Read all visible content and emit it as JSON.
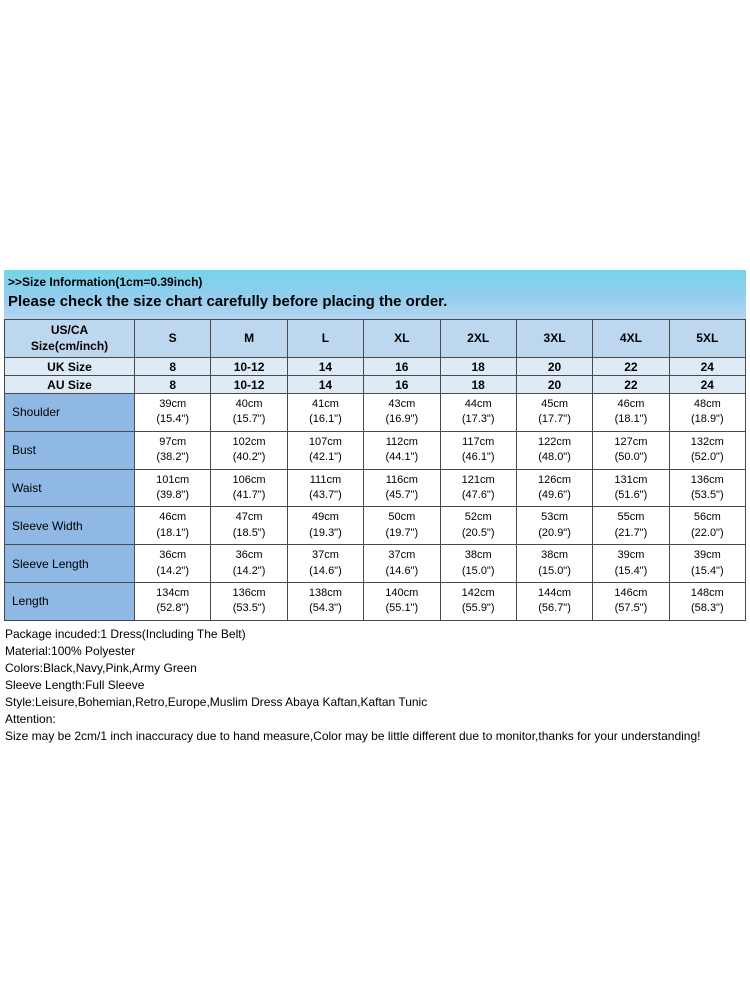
{
  "header": {
    "size_info": ">>Size Information(1cm=0.39inch)",
    "notice": "Please check the size chart carefully before placing the order."
  },
  "table": {
    "corner_line1": "US/CA",
    "corner_line2": "Size(cm/inch)",
    "size_headers": [
      "S",
      "M",
      "L",
      "XL",
      "2XL",
      "3XL",
      "4XL",
      "5XL"
    ],
    "uk": {
      "label": "UK Size",
      "values": [
        "8",
        "10-12",
        "14",
        "16",
        "18",
        "20",
        "22",
        "24"
      ]
    },
    "au": {
      "label": "AU Size",
      "values": [
        "8",
        "10-12",
        "14",
        "16",
        "18",
        "20",
        "22",
        "24"
      ]
    },
    "measure_rows": [
      {
        "label": "Shoulder",
        "cm": [
          "39cm",
          "40cm",
          "41cm",
          "43cm",
          "44cm",
          "45cm",
          "46cm",
          "48cm"
        ],
        "inch": [
          "(15.4\")",
          "(15.7\")",
          "(16.1\")",
          "(16.9\")",
          "(17.3\")",
          "(17.7\")",
          "(18.1\")",
          "(18.9\")"
        ]
      },
      {
        "label": "Bust",
        "cm": [
          "97cm",
          "102cm",
          "107cm",
          "112cm",
          "117cm",
          "122cm",
          "127cm",
          "132cm"
        ],
        "inch": [
          "(38.2\")",
          "(40.2\")",
          "(42.1\")",
          "(44.1\")",
          "(46.1\")",
          "(48.0\")",
          "(50.0\")",
          "(52.0\")"
        ]
      },
      {
        "label": "Waist",
        "cm": [
          "101cm",
          "106cm",
          "111cm",
          "116cm",
          "121cm",
          "126cm",
          "131cm",
          "136cm"
        ],
        "inch": [
          "(39.8\")",
          "(41.7\")",
          "(43.7\")",
          "(45.7\")",
          "(47.6\")",
          "(49.6\")",
          "(51.6\")",
          "(53.5\")"
        ]
      },
      {
        "label": "Sleeve Width",
        "cm": [
          "46cm",
          "47cm",
          "49cm",
          "50cm",
          "52cm",
          "53cm",
          "55cm",
          "56cm"
        ],
        "inch": [
          "(18.1\")",
          "(18.5\")",
          "(19.3\")",
          "(19.7\")",
          "(20.5\")",
          "(20.9\")",
          "(21.7\")",
          "(22.0\")"
        ]
      },
      {
        "label": "Sleeve Length",
        "cm": [
          "36cm",
          "36cm",
          "37cm",
          "37cm",
          "38cm",
          "38cm",
          "39cm",
          "39cm"
        ],
        "inch": [
          "(14.2\")",
          "(14.2\")",
          "(14.6\")",
          "(14.6\")",
          "(15.0\")",
          "(15.0\")",
          "(15.4\")",
          "(15.4\")"
        ]
      },
      {
        "label": "Length",
        "cm": [
          "134cm",
          "136cm",
          "138cm",
          "140cm",
          "142cm",
          "144cm",
          "146cm",
          "148cm"
        ],
        "inch": [
          "(52.8\")",
          "(53.5\")",
          "(54.3\")",
          "(55.1\")",
          "(55.9\")",
          "(56.7\")",
          "(57.5\")",
          "(58.3\")"
        ]
      }
    ]
  },
  "footer": {
    "lines": [
      "Package incuded:1 Dress(Including The Belt)",
      "Material:100% Polyester",
      "Colors:Black,Navy,Pink,Army Green",
      "Sleeve Length:Full Sleeve",
      "Style:Leisure,Bohemian,Retro,Europe,Muslim Dress Abaya Kaftan,Kaftan Tunic",
      "Attention:",
      "Size may be 2cm/1 inch inaccuracy due to hand measure,Color may be little different due to monitor,thanks for your understanding!"
    ]
  },
  "colors": {
    "band_gradient_top": "#74d4ea",
    "band_gradient_bottom": "#b4d6f2",
    "header_row_bg": "#bdd7ee",
    "intl_row_bg": "#deebf7",
    "label_col_bg": "#8fb9e4",
    "table_border": "#4a4a4a"
  }
}
